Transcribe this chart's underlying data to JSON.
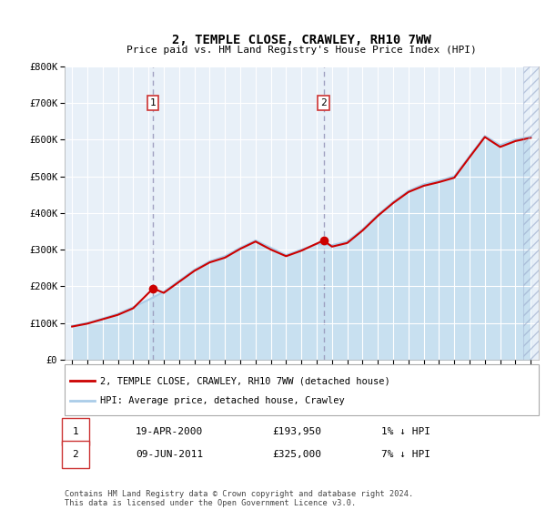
{
  "title": "2, TEMPLE CLOSE, CRAWLEY, RH10 7WW",
  "subtitle": "Price paid vs. HM Land Registry's House Price Index (HPI)",
  "ylim": [
    0,
    800000
  ],
  "xlim_start": 1994.5,
  "xlim_end": 2025.5,
  "yticks": [
    0,
    100000,
    200000,
    300000,
    400000,
    500000,
    600000,
    700000,
    800000
  ],
  "ytick_labels": [
    "£0",
    "£100K",
    "£200K",
    "£300K",
    "£400K",
    "£500K",
    "£600K",
    "£700K",
    "£800K"
  ],
  "xticks": [
    1995,
    1996,
    1997,
    1998,
    1999,
    2000,
    2001,
    2002,
    2003,
    2004,
    2005,
    2006,
    2007,
    2008,
    2009,
    2010,
    2011,
    2012,
    2013,
    2014,
    2015,
    2016,
    2017,
    2018,
    2019,
    2020,
    2021,
    2022,
    2023,
    2024,
    2025
  ],
  "hpi_color": "#aacce8",
  "hpi_fill_color": "#c8e0f0",
  "price_color": "#cc0000",
  "marker_color": "#cc0000",
  "vline_color": "#9999bb",
  "background_color": "#e8f0f8",
  "sale1_year": 2000.3,
  "sale1_price": 193950,
  "sale2_year": 2011.45,
  "sale2_price": 325000,
  "legend_line1": "2, TEMPLE CLOSE, CRAWLEY, RH10 7WW (detached house)",
  "legend_line2": "HPI: Average price, detached house, Crawley",
  "annot1_date": "19-APR-2000",
  "annot1_price": "£193,950",
  "annot1_hpi": "1% ↓ HPI",
  "annot2_date": "09-JUN-2011",
  "annot2_price": "£325,000",
  "annot2_hpi": "7% ↓ HPI",
  "footer": "Contains HM Land Registry data © Crown copyright and database right 2024.\nThis data is licensed under the Open Government Licence v3.0.",
  "hatch_start": 2024.5,
  "hpi_years": [
    1995,
    1996,
    1997,
    1998,
    1999,
    2000,
    2001,
    2002,
    2003,
    2004,
    2005,
    2006,
    2007,
    2008,
    2009,
    2010,
    2011,
    2012,
    2013,
    2014,
    2015,
    2016,
    2017,
    2018,
    2019,
    2020,
    2021,
    2022,
    2023,
    2024,
    2025
  ],
  "hpi_values": [
    92000,
    100000,
    112000,
    125000,
    143000,
    163000,
    185000,
    215000,
    245000,
    268000,
    282000,
    305000,
    325000,
    305000,
    285000,
    300000,
    315000,
    312000,
    322000,
    355000,
    395000,
    430000,
    460000,
    478000,
    488000,
    500000,
    555000,
    610000,
    585000,
    600000,
    608000
  ],
  "price_years": [
    1995,
    1996,
    1997,
    1998,
    1999,
    2000.3,
    2001,
    2002,
    2003,
    2004,
    2005,
    2006,
    2007,
    2008,
    2009,
    2010,
    2011.45,
    2012,
    2013,
    2014,
    2015,
    2016,
    2017,
    2018,
    2019,
    2020,
    2021,
    2022,
    2023,
    2024,
    2025
  ],
  "price_values": [
    90000,
    98000,
    110000,
    122000,
    140000,
    193950,
    182000,
    212000,
    242000,
    265000,
    278000,
    302000,
    322000,
    300000,
    282000,
    297000,
    325000,
    308000,
    318000,
    352000,
    392000,
    427000,
    457000,
    474000,
    484000,
    496000,
    552000,
    607000,
    580000,
    596000,
    605000
  ]
}
